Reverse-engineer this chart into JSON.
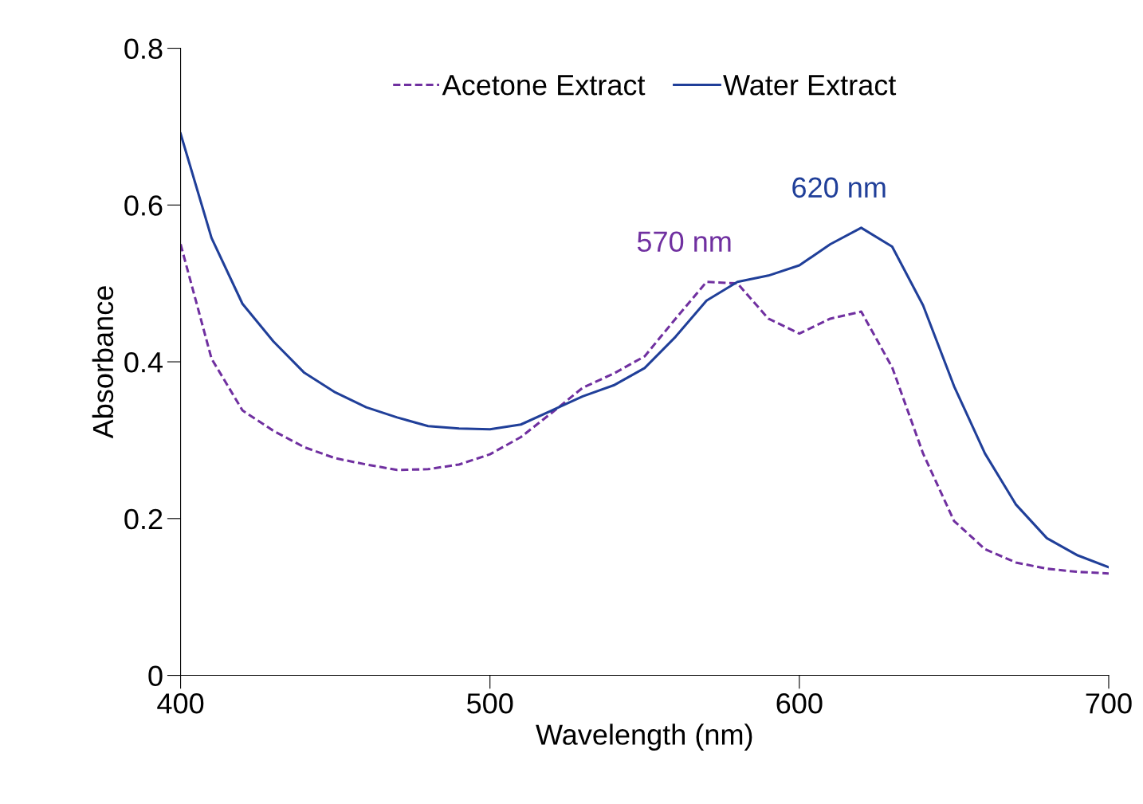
{
  "chart_data": {
    "type": "line",
    "xlabel": "Wavelength (nm)",
    "ylabel": "Absorbance",
    "x": [
      400,
      410,
      420,
      430,
      440,
      450,
      460,
      470,
      480,
      490,
      500,
      510,
      520,
      530,
      540,
      550,
      560,
      570,
      580,
      590,
      600,
      610,
      620,
      630,
      640,
      650,
      660,
      670,
      680,
      690,
      700
    ],
    "series": [
      {
        "name": "Acetone Extract",
        "color": "#7030a0",
        "line_style": "dashed",
        "values": [
          0.55,
          0.404,
          0.338,
          0.312,
          0.291,
          0.277,
          0.269,
          0.262,
          0.263,
          0.269,
          0.282,
          0.304,
          0.335,
          0.367,
          0.385,
          0.407,
          0.455,
          0.502,
          0.5,
          0.455,
          0.436,
          0.455,
          0.464,
          0.393,
          0.283,
          0.197,
          0.161,
          0.144,
          0.136,
          0.132,
          0.13
        ]
      },
      {
        "name": "Water Extract",
        "color": "#203f99",
        "line_style": "solid",
        "values": [
          0.691,
          0.558,
          0.474,
          0.426,
          0.386,
          0.361,
          0.342,
          0.329,
          0.318,
          0.315,
          0.314,
          0.32,
          0.338,
          0.356,
          0.37,
          0.392,
          0.432,
          0.478,
          0.502,
          0.51,
          0.523,
          0.55,
          0.571,
          0.547,
          0.472,
          0.369,
          0.283,
          0.218,
          0.175,
          0.153,
          0.138
        ]
      }
    ],
    "annotations": [
      {
        "text": "570 nm",
        "x": 570,
        "y": 0.502
      },
      {
        "text": "620 nm",
        "x": 620,
        "y": 0.571
      }
    ],
    "xlim": [
      400,
      700
    ],
    "xticks": [
      400,
      500,
      600,
      700
    ],
    "ylim": [
      0,
      0.8
    ],
    "yticks": [
      0,
      0.2,
      0.4,
      0.6,
      0.8
    ],
    "grid": false,
    "legend": "top",
    "marker": "none"
  }
}
